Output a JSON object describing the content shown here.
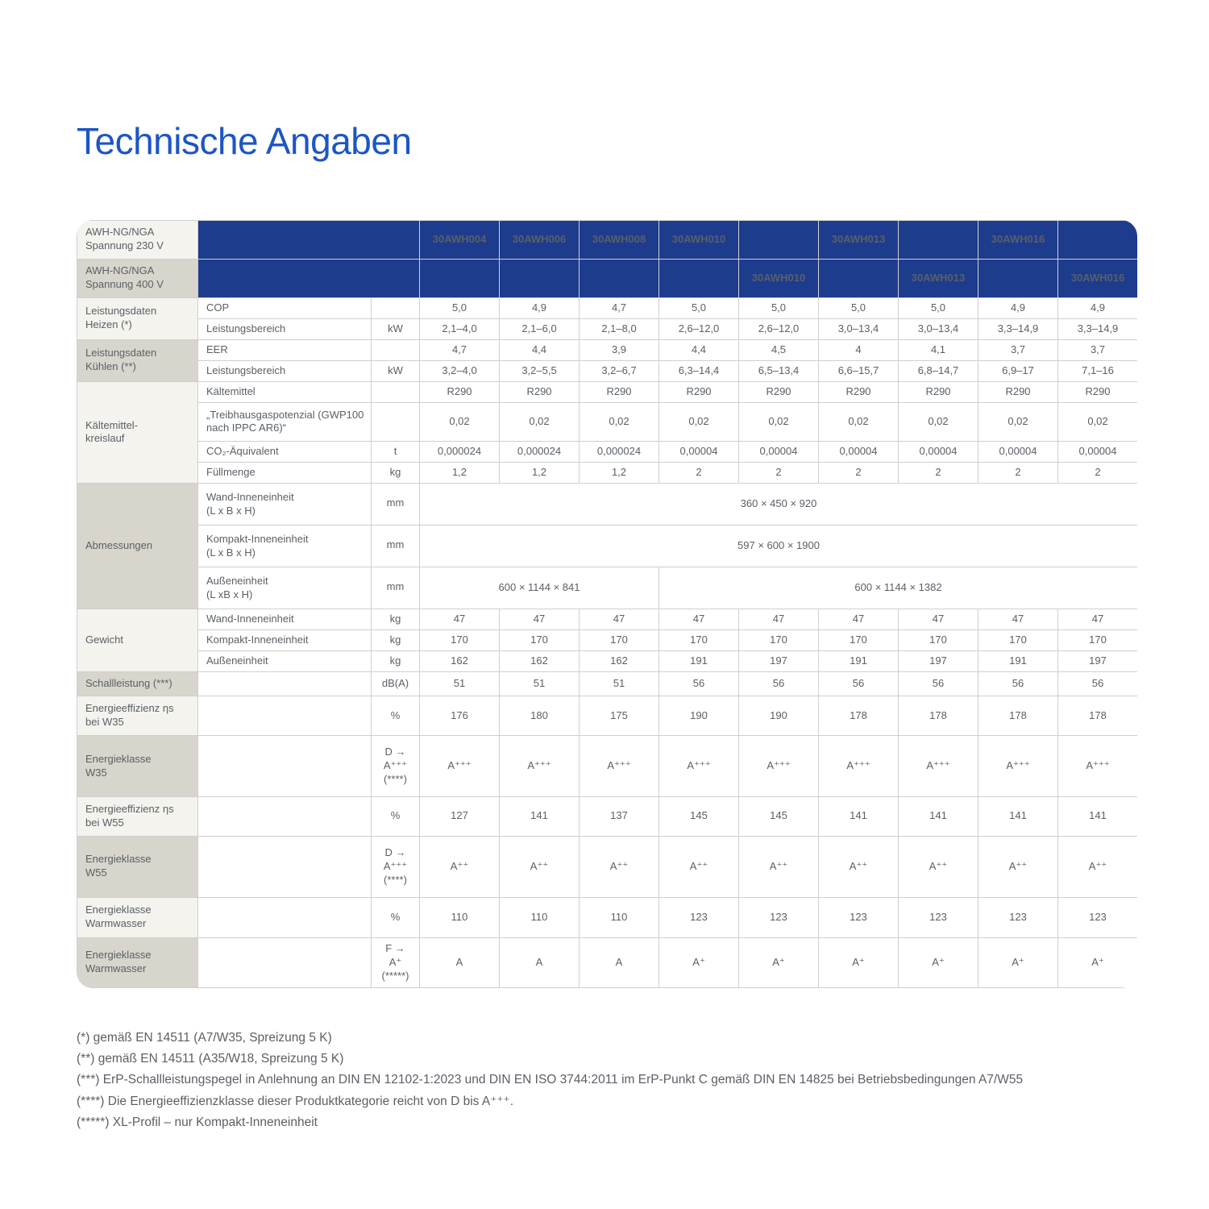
{
  "page_title": "Technische Angaben",
  "colors": {
    "title_blue": "#1c55c6",
    "header_navy": "#1e3c8e",
    "label_light": "#f4f3ee",
    "label_dark": "#d8d5cc",
    "text_gray": "#5a6066"
  },
  "table": {
    "header_rows": [
      {
        "label": "AWH-NG/NGA\nSpannung 230 V",
        "models": [
          "30AWH004",
          "30AWH006",
          "30AWH008",
          "30AWH010",
          "",
          "30AWH013",
          "",
          "30AWH016",
          ""
        ]
      },
      {
        "label": "AWH-NG/NGA\nSpannung 400 V",
        "models": [
          "",
          "",
          "",
          "",
          "30AWH010",
          "",
          "30AWH013",
          "",
          "30AWH016"
        ]
      }
    ],
    "sections": [
      {
        "label": "Leistungsdaten\nHeizen (*)",
        "rows": [
          {
            "attr": "COP",
            "unit": "",
            "cells": [
              "5,0",
              "4,9",
              "4,7",
              "5,0",
              "5,0",
              "5,0",
              "5,0",
              "4,9",
              "4,9"
            ]
          },
          {
            "attr": "Leistungsbereich",
            "unit": "kW",
            "cells": [
              "2,1–4,0",
              "2,1–6,0",
              "2,1–8,0",
              "2,6–12,0",
              "2,6–12,0",
              "3,0–13,4",
              "3,0–13,4",
              "3,3–14,9",
              "3,3–14,9"
            ]
          }
        ]
      },
      {
        "label": "Leistungsdaten\nKühlen (**)",
        "rows": [
          {
            "attr": "EER",
            "unit": "",
            "cells": [
              "4,7",
              "4,4",
              "3,9",
              "4,4",
              "4,5",
              "4",
              "4,1",
              "3,7",
              "3,7"
            ]
          },
          {
            "attr": "Leistungsbereich",
            "unit": "kW",
            "cells": [
              "3,2–4,0",
              "3,2–5,5",
              "3,2–6,7",
              "6,3–14,4",
              "6,5–13,4",
              "6,6–15,7",
              "6,8–14,7",
              "6,9–17",
              "7,1–16"
            ]
          }
        ]
      },
      {
        "label": "Kältemittel-\nkreislauf",
        "rows": [
          {
            "attr": "Kältemittel",
            "unit": "",
            "cells": [
              "R290",
              "R290",
              "R290",
              "R290",
              "R290",
              "R290",
              "R290",
              "R290",
              "R290"
            ]
          },
          {
            "attr": "„Treibhausgaspotenzial (GWP100 nach IPPC AR6)“",
            "unit": "",
            "tall": true,
            "cells": [
              "0,02",
              "0,02",
              "0,02",
              "0,02",
              "0,02",
              "0,02",
              "0,02",
              "0,02",
              "0,02"
            ]
          },
          {
            "attr": "CO₂-Äquivalent",
            "unit": "t",
            "cells": [
              "0,000024",
              "0,000024",
              "0,000024",
              "0,00004",
              "0,00004",
              "0,00004",
              "0,00004",
              "0,00004",
              "0,00004"
            ]
          },
          {
            "attr": "Füllmenge",
            "unit": "kg",
            "cells": [
              "1,2",
              "1,2",
              "1,2",
              "2",
              "2",
              "2",
              "2",
              "2",
              "2"
            ]
          }
        ]
      },
      {
        "label": "Abmessungen",
        "rows": [
          {
            "attr": "Wand-Inneneinheit\n(L x B x H)",
            "unit": "mm",
            "dim": true,
            "unit_bottom": true,
            "cells": [
              {
                "text": "360 × 450 × 920",
                "span": 9
              }
            ]
          },
          {
            "attr": "Kompakt-Inneneinheit\n(L x B x H)",
            "unit": "mm",
            "dim": true,
            "unit_bottom": true,
            "cells": [
              {
                "text": "597 × 600 × 1900",
                "span": 9
              }
            ]
          },
          {
            "attr": "Außeneinheit\n(L xB x H)",
            "unit": "mm",
            "dim": true,
            "unit_bottom": true,
            "cells": [
              {
                "text": "600 × 1144 × 841",
                "span": 3
              },
              {
                "text": "600 × 1144 × 1382",
                "span": 6
              }
            ]
          }
        ]
      },
      {
        "label": "Gewicht",
        "rows": [
          {
            "attr": "Wand-Inneneinheit",
            "unit": "kg",
            "cells": [
              "47",
              "47",
              "47",
              "47",
              "47",
              "47",
              "47",
              "47",
              "47"
            ]
          },
          {
            "attr": "Kompakt-Inneneinheit",
            "unit": "kg",
            "cells": [
              "170",
              "170",
              "170",
              "170",
              "170",
              "170",
              "170",
              "170",
              "170"
            ]
          },
          {
            "attr": "Außeneinheit",
            "unit": "kg",
            "cells": [
              "162",
              "162",
              "162",
              "191",
              "197",
              "191",
              "197",
              "191",
              "197"
            ]
          }
        ]
      },
      {
        "label": "Schallleistung (***)",
        "rows": [
          {
            "attr": "",
            "unit": "dB(A)",
            "cells": [
              "51",
              "51",
              "51",
              "56",
              "56",
              "56",
              "56",
              "56",
              "56"
            ]
          }
        ]
      },
      {
        "label": "Energieeffizienz ηs\nbei W35",
        "rows": [
          {
            "attr": "",
            "unit": "%",
            "tall": true,
            "cells": [
              "176",
              "180",
              "175",
              "190",
              "190",
              "178",
              "178",
              "178",
              "178"
            ]
          }
        ]
      },
      {
        "label": "Energieklasse\nW35",
        "rows": [
          {
            "attr": "",
            "unit": "D →\nA⁺⁺⁺\n(****)",
            "class_row": true,
            "cells": [
              "A⁺⁺⁺",
              "A⁺⁺⁺",
              "A⁺⁺⁺",
              "A⁺⁺⁺",
              "A⁺⁺⁺",
              "A⁺⁺⁺",
              "A⁺⁺⁺",
              "A⁺⁺⁺",
              "A⁺⁺⁺"
            ]
          }
        ]
      },
      {
        "label": "Energieeffizienz ηs\nbei W55",
        "rows": [
          {
            "attr": "",
            "unit": "%",
            "tall": true,
            "cells": [
              "127",
              "141",
              "137",
              "145",
              "145",
              "141",
              "141",
              "141",
              "141"
            ]
          }
        ]
      },
      {
        "label": "Energieklasse\nW55",
        "rows": [
          {
            "attr": "",
            "unit": "D →\nA⁺⁺⁺\n(****)",
            "class_row": true,
            "cells": [
              "A⁺⁺",
              "A⁺⁺",
              "A⁺⁺",
              "A⁺⁺",
              "A⁺⁺",
              "A⁺⁺",
              "A⁺⁺",
              "A⁺⁺",
              "A⁺⁺"
            ]
          }
        ]
      },
      {
        "label": "Energieklasse\nWarmwasser",
        "rows": [
          {
            "attr": "",
            "unit": "%",
            "ww": true,
            "cells": [
              "110",
              "110",
              "110",
              "123",
              "123",
              "123",
              "123",
              "123",
              "123"
            ]
          }
        ]
      },
      {
        "label": "Energieklasse\nWarmwasser",
        "rows": [
          {
            "attr": "",
            "unit": "F →\nA⁺\n(*****)",
            "ww_last": true,
            "cells": [
              "A",
              "A",
              "A",
              "A⁺",
              "A⁺",
              "A⁺",
              "A⁺",
              "A⁺",
              "A⁺"
            ]
          }
        ]
      }
    ]
  },
  "footnotes": [
    "(*) gemäß EN 14511 (A7/W35, Spreizung 5 K)",
    "(**) gemäß EN 14511 (A35/W18, Spreizung 5 K)",
    "(***) ErP-Schallleistungspegel in Anlehnung an DIN EN 12102-1:2023 und DIN EN ISO 3744:2011 im ErP-Punkt C gemäß DIN EN 14825 bei Betriebsbedingungen A7/W55",
    "(****) Die Energieeffizienzklasse dieser Produktkategorie reicht von D bis A⁺⁺⁺.",
    "(*****) XL-Profil – nur Kompakt-Inneneinheit"
  ]
}
